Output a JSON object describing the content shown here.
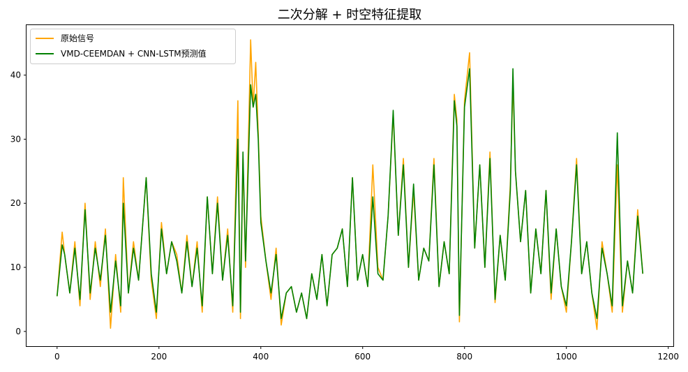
{
  "chart_data": {
    "type": "line",
    "title": "二次分解 + 时空特征提取",
    "xlabel": "",
    "ylabel": "",
    "xlim": [
      -60,
      1210
    ],
    "ylim": [
      -2.3,
      47.8
    ],
    "xticks": [
      0,
      200,
      400,
      600,
      800,
      1000,
      1200
    ],
    "yticks": [
      0,
      10,
      20,
      30,
      40
    ],
    "grid": false,
    "legend_position": "upper left",
    "series": [
      {
        "name": "原始信号",
        "color": "#FFA500",
        "x": [
          0,
          10,
          15,
          25,
          35,
          45,
          55,
          65,
          75,
          85,
          95,
          105,
          115,
          125,
          130,
          140,
          150,
          160,
          175,
          185,
          195,
          205,
          215,
          225,
          235,
          245,
          255,
          265,
          275,
          285,
          295,
          305,
          315,
          325,
          335,
          345,
          355,
          360,
          365,
          370,
          380,
          385,
          390,
          395,
          400,
          410,
          420,
          430,
          440,
          450,
          460,
          470,
          480,
          490,
          500,
          510,
          520,
          530,
          540,
          550,
          560,
          570,
          580,
          590,
          600,
          610,
          620,
          630,
          640,
          650,
          660,
          670,
          680,
          690,
          700,
          710,
          720,
          730,
          740,
          750,
          760,
          770,
          780,
          785,
          790,
          800,
          810,
          820,
          830,
          840,
          850,
          860,
          870,
          880,
          890,
          895,
          900,
          910,
          920,
          930,
          940,
          950,
          960,
          970,
          980,
          990,
          1000,
          1010,
          1020,
          1030,
          1040,
          1050,
          1060,
          1070,
          1080,
          1090,
          1100,
          1110,
          1120,
          1130,
          1140,
          1150
        ],
        "values": [
          5.5,
          15.5,
          12,
          6,
          14,
          4,
          20,
          5,
          14,
          7,
          16,
          0.5,
          12,
          3,
          24,
          6,
          14,
          8,
          24,
          8,
          2,
          17,
          9,
          14,
          12,
          6,
          15,
          7,
          14,
          3,
          21,
          9,
          21,
          8,
          16,
          3,
          36,
          2,
          27,
          10,
          45.5,
          35,
          42,
          31,
          18,
          11,
          5,
          13,
          1,
          6,
          7,
          3,
          6,
          2,
          9,
          5,
          12,
          4,
          12,
          13,
          16,
          7,
          24,
          8,
          12,
          7,
          26,
          10,
          8,
          18,
          34,
          15,
          27,
          10,
          22,
          8,
          13,
          11,
          27,
          7,
          14,
          9,
          37,
          33,
          1.5,
          36,
          43.5,
          13,
          26,
          10,
          28,
          4.5,
          15,
          8,
          23,
          39,
          25,
          14,
          22,
          6,
          16,
          9,
          22,
          5,
          16,
          7,
          3,
          14,
          27,
          9,
          14,
          6,
          0.3,
          14,
          9,
          3,
          26,
          3,
          11,
          6,
          19,
          9
        ]
      },
      {
        "name": "VMD-CEEMDAN + CNN-LSTM预测值",
        "color": "#008000",
        "x": [
          0,
          10,
          15,
          25,
          35,
          45,
          55,
          65,
          75,
          85,
          95,
          105,
          115,
          125,
          130,
          140,
          150,
          160,
          175,
          185,
          195,
          205,
          215,
          225,
          235,
          245,
          255,
          265,
          275,
          285,
          295,
          305,
          315,
          325,
          335,
          345,
          355,
          360,
          365,
          370,
          380,
          385,
          390,
          395,
          400,
          410,
          420,
          430,
          440,
          450,
          460,
          470,
          480,
          490,
          500,
          510,
          520,
          530,
          540,
          550,
          560,
          570,
          580,
          590,
          600,
          610,
          620,
          630,
          640,
          650,
          660,
          670,
          680,
          690,
          700,
          710,
          720,
          730,
          740,
          750,
          760,
          770,
          780,
          785,
          790,
          800,
          810,
          820,
          830,
          840,
          850,
          860,
          870,
          880,
          890,
          895,
          900,
          910,
          920,
          930,
          940,
          950,
          960,
          970,
          980,
          990,
          1000,
          1010,
          1020,
          1030,
          1040,
          1050,
          1060,
          1070,
          1080,
          1090,
          1100,
          1110,
          1120,
          1130,
          1140,
          1150
        ],
        "values": [
          5.5,
          13.5,
          12,
          6,
          13,
          5,
          19,
          6,
          13,
          8,
          15,
          3,
          11,
          4,
          20,
          6,
          13,
          8,
          24,
          9,
          3,
          16,
          9,
          14,
          11,
          6,
          14,
          7,
          13,
          4,
          21,
          9,
          20,
          8,
          15,
          4,
          30,
          3,
          28,
          11,
          38.5,
          35,
          37,
          30,
          17,
          11,
          6,
          12,
          2,
          6,
          7,
          3,
          6,
          2,
          9,
          5,
          12,
          4,
          12,
          13,
          16,
          7,
          24,
          8,
          12,
          7,
          21,
          9,
          8,
          18,
          34.5,
          15,
          26,
          10,
          23,
          8,
          13,
          11,
          26,
          7,
          14,
          9,
          36,
          32,
          2.5,
          35,
          41,
          13,
          26,
          10,
          27,
          5,
          15,
          8,
          22,
          41,
          25,
          14,
          22,
          6,
          16,
          9,
          22,
          6,
          16,
          7,
          4,
          14,
          26,
          9,
          14,
          6,
          2,
          13,
          9,
          4,
          31,
          4,
          11,
          6,
          18,
          9
        ]
      }
    ]
  }
}
